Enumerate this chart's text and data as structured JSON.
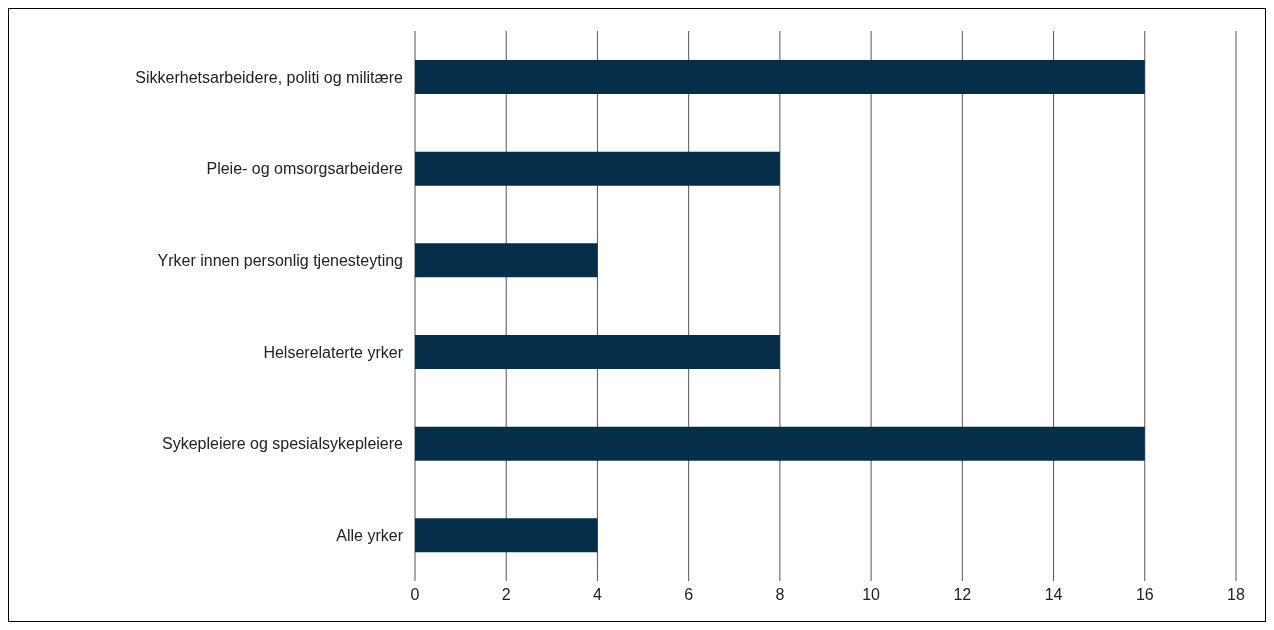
{
  "chart_data": {
    "type": "bar",
    "orientation": "horizontal",
    "categories": [
      "Sikkerhetsarbeidere, politi og militære",
      "Pleie- og omsorgsarbeidere",
      "Yrker innen personlig tjenesteyting",
      "Helserelaterte yrker",
      "Sykepleiere og spesialsykepleiere",
      "Alle yrker"
    ],
    "values": [
      16,
      8,
      4,
      8,
      16,
      4
    ],
    "color": "#052e4a",
    "xlim": [
      0,
      18
    ],
    "xticks": [
      0,
      2,
      4,
      6,
      8,
      10,
      12,
      14,
      16,
      18
    ],
    "grid": "x"
  }
}
